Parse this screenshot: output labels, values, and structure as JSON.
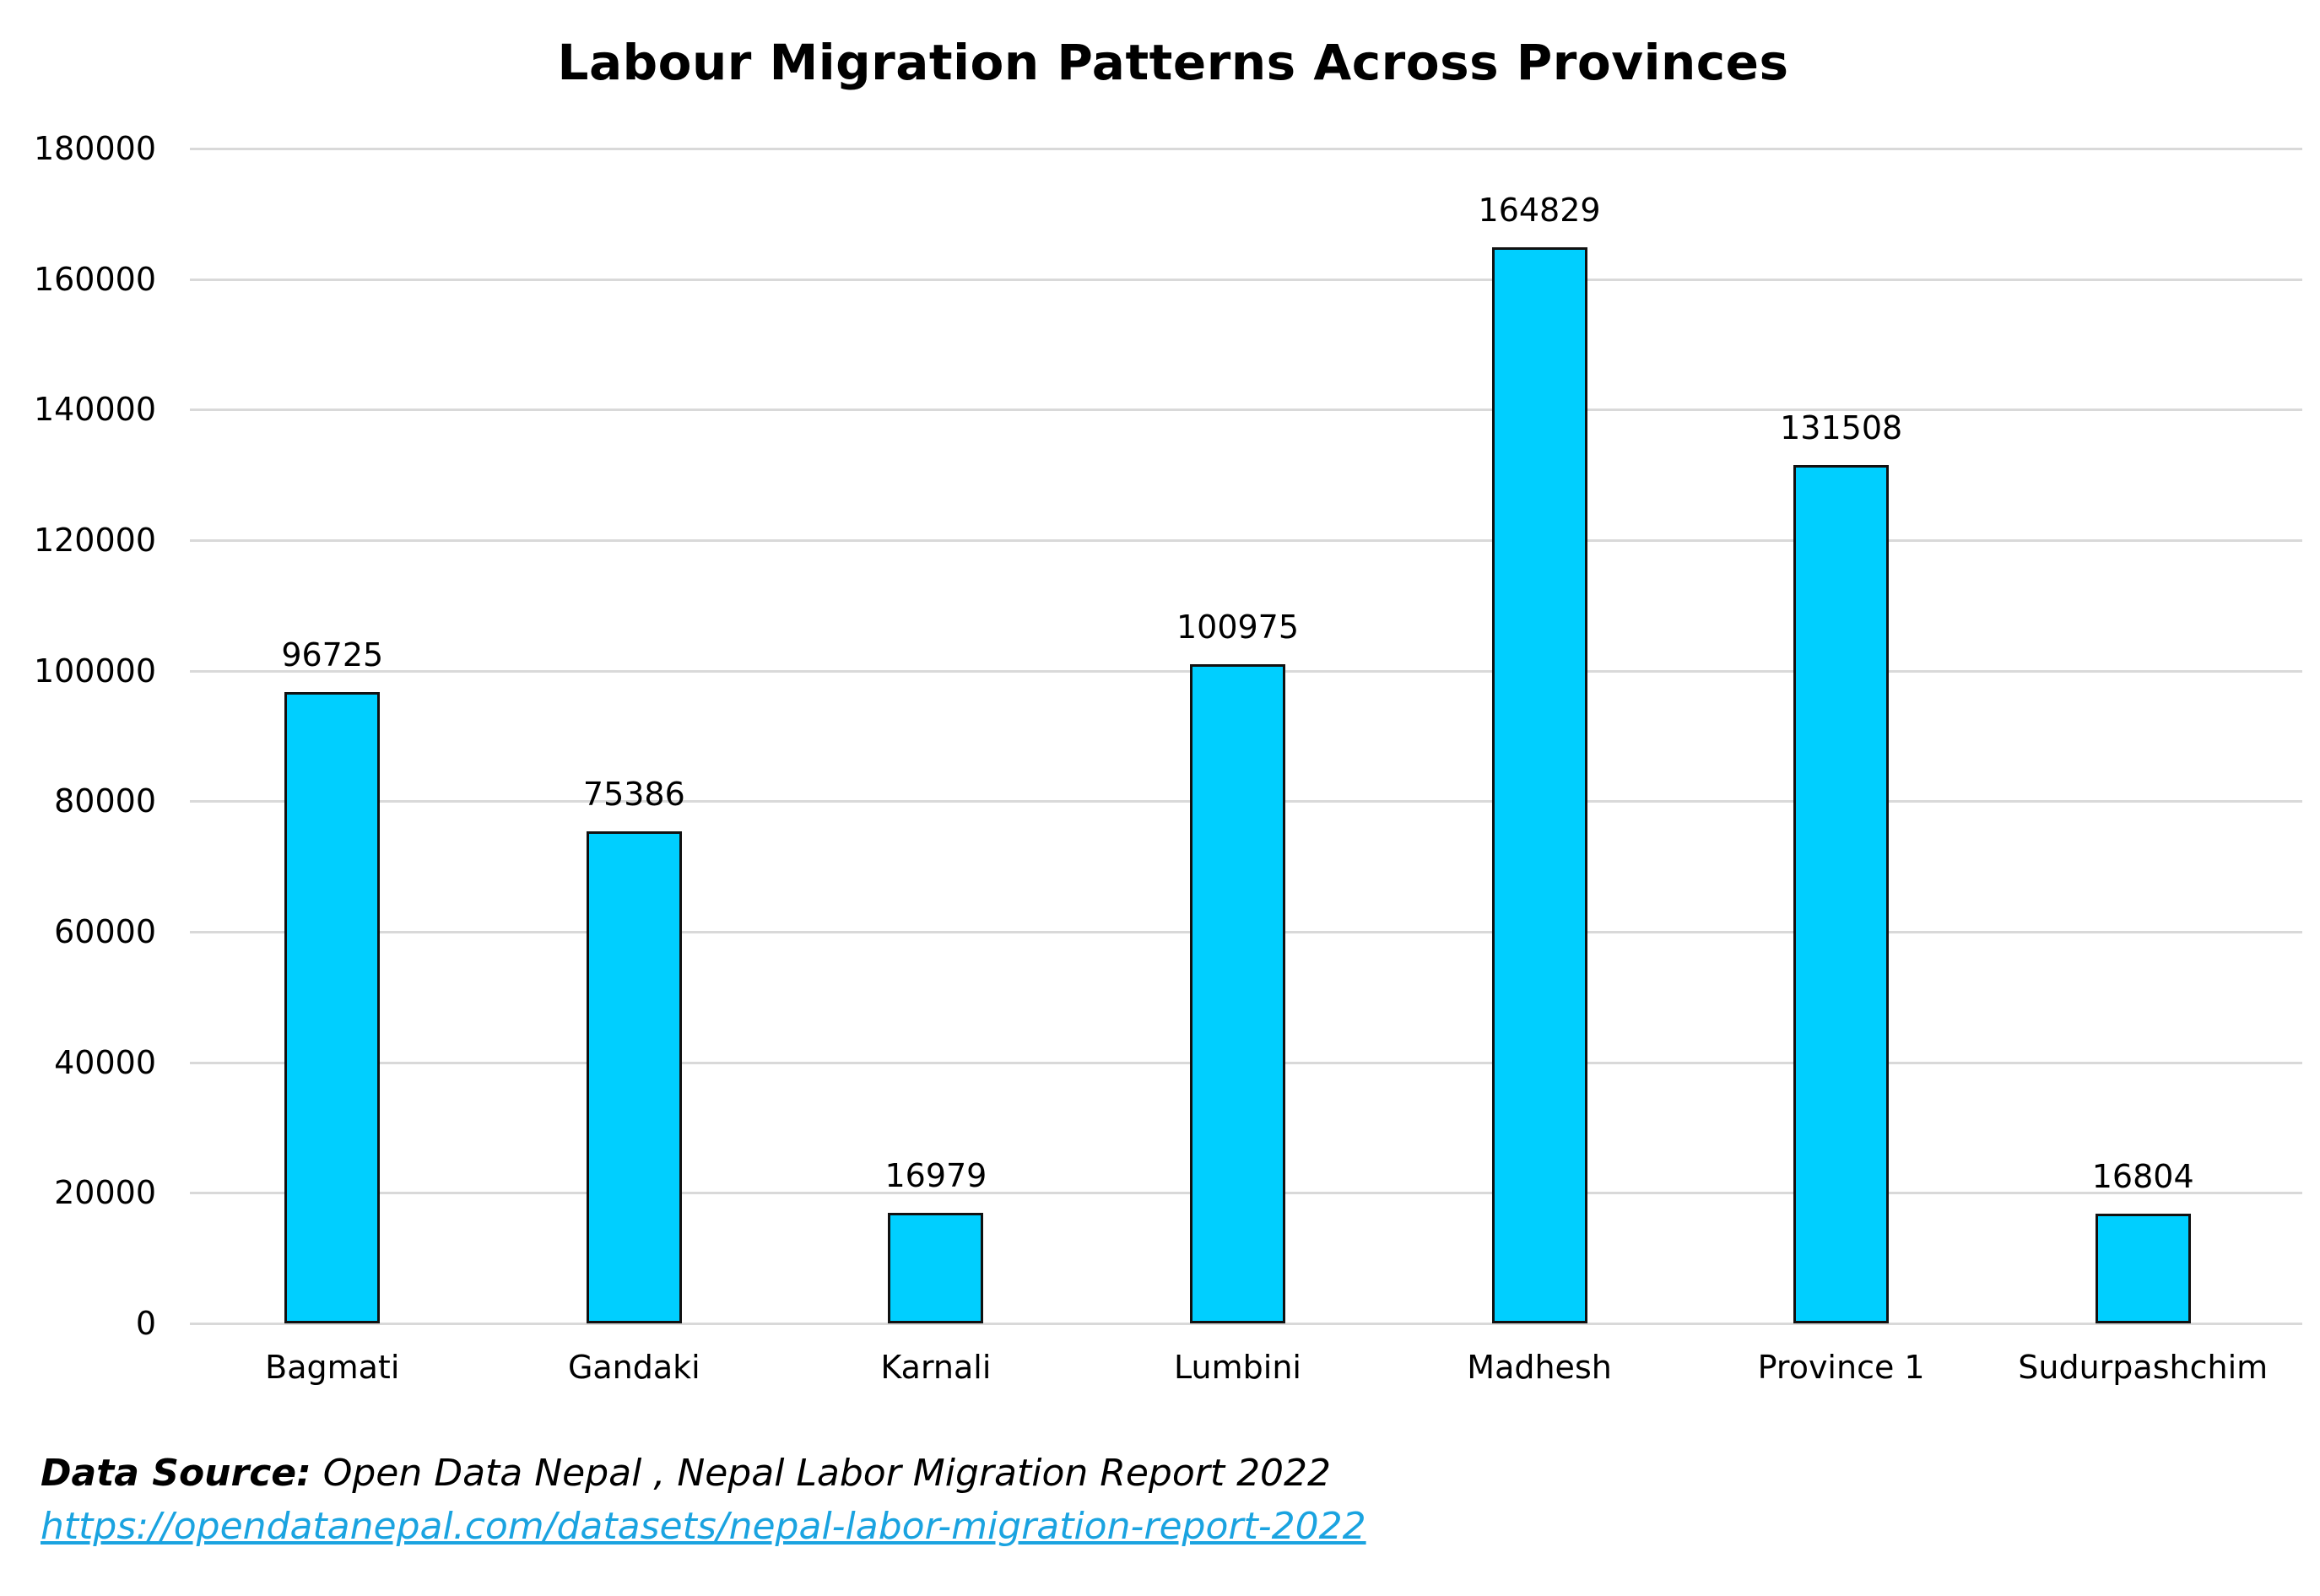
{
  "chart_data": {
    "type": "bar",
    "title": "Labour Migration Patterns Across Provinces",
    "xlabel": "",
    "ylabel": "",
    "categories": [
      "Bagmati",
      "Gandaki",
      "Karnali",
      "Lumbini",
      "Madhesh",
      "Province 1",
      "Sudurpashchim"
    ],
    "values": [
      96725,
      75386,
      16979,
      100975,
      164829,
      131508,
      16804
    ],
    "data_labels": [
      "96725",
      "75386",
      "16979",
      "100975",
      "164829",
      "131508",
      "16804"
    ],
    "ylim": [
      0,
      180000
    ],
    "yticks": [
      "0",
      "20000",
      "40000",
      "60000",
      "80000",
      "100000",
      "120000",
      "140000",
      "160000",
      "180000"
    ],
    "grid": true,
    "legend": null,
    "bar_color": "#00cfff",
    "bar_edge_color": "#111111"
  },
  "footer": {
    "source_label": "Data Source:",
    "source_text": " Open Data Nepal , Nepal Labor Migration Report 2022",
    "url": "https://opendatanepal.com/datasets/nepal-labor-migration-report-2022"
  }
}
